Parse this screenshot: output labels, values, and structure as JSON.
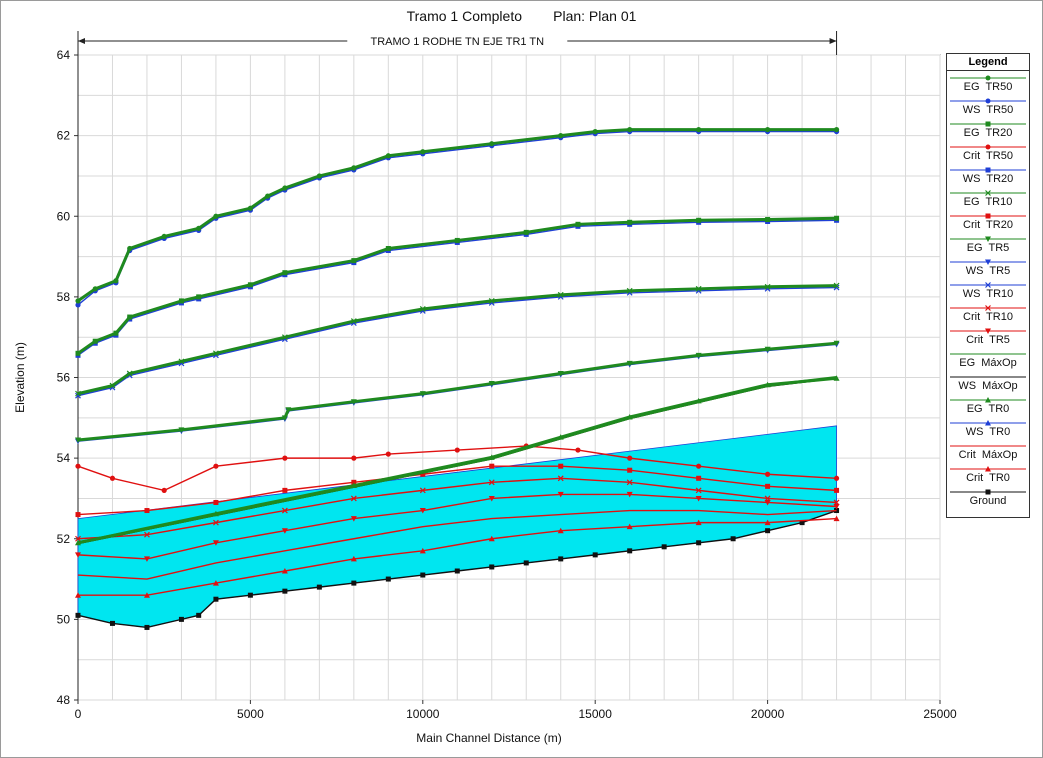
{
  "title": "Tramo 1 Completo        Plan: Plan 01",
  "chart_data": {
    "type": "line",
    "title": "Tramo 1 Completo        Plan: Plan 01",
    "xlabel": "Main Channel Distance (m)",
    "ylabel": "Elevation (m)",
    "xlim": [
      0,
      25000
    ],
    "ylim": [
      48,
      64
    ],
    "xticks": [
      0,
      5000,
      10000,
      15000,
      20000,
      25000
    ],
    "yticks": [
      48,
      50,
      52,
      54,
      56,
      58,
      60,
      62,
      64
    ],
    "grid": true,
    "reach_label": "TRAMO 1 RODHE TN EJE TR1 TN",
    "reach_extent": [
      0,
      22000
    ],
    "legend_title": "Legend",
    "legend_position": "right",
    "series": [
      {
        "name": "EG  TR50",
        "color": "#1f8a1f",
        "marker": "circle",
        "x": [
          0,
          500,
          1100,
          1500,
          2500,
          3500,
          4000,
          5000,
          5500,
          6000,
          7000,
          8000,
          9000,
          10000,
          12000,
          14000,
          15000,
          16000,
          18000,
          20000,
          22000
        ],
        "y": [
          57.9,
          58.2,
          58.4,
          59.2,
          59.5,
          59.7,
          60.0,
          60.2,
          60.5,
          60.7,
          61.0,
          61.2,
          61.5,
          61.6,
          61.8,
          62.0,
          62.1,
          62.15,
          62.15,
          62.15,
          62.15
        ]
      },
      {
        "name": "WS  TR50",
        "color": "#1f3fd6",
        "marker": "circle",
        "x": [
          0,
          500,
          1100,
          1500,
          2500,
          3500,
          4000,
          5000,
          5500,
          6000,
          7000,
          8000,
          9000,
          10000,
          12000,
          14000,
          15000,
          16000,
          18000,
          20000,
          22000
        ],
        "y": [
          57.8,
          58.15,
          58.35,
          59.15,
          59.45,
          59.65,
          59.95,
          60.15,
          60.45,
          60.65,
          60.95,
          61.15,
          61.45,
          61.55,
          61.75,
          61.95,
          62.05,
          62.1,
          62.1,
          62.1,
          62.1
        ]
      },
      {
        "name": "EG  TR20",
        "color": "#1f8a1f",
        "marker": "square",
        "x": [
          0,
          500,
          1100,
          1500,
          3000,
          3500,
          5000,
          6000,
          8000,
          9000,
          11000,
          13000,
          14500,
          16000,
          18000,
          20000,
          22000
        ],
        "y": [
          56.6,
          56.9,
          57.1,
          57.5,
          57.9,
          58.0,
          58.3,
          58.6,
          58.9,
          59.2,
          59.4,
          59.6,
          59.8,
          59.85,
          59.9,
          59.92,
          59.95
        ]
      },
      {
        "name": "Crit  TR50",
        "color": "#e01010",
        "marker": "circle",
        "x": [
          0,
          1000,
          2500,
          4000,
          6000,
          8000,
          9000,
          11000,
          13000,
          14500,
          16000,
          18000,
          20000,
          22000
        ],
        "y": [
          53.8,
          53.5,
          53.2,
          53.8,
          54.0,
          54.0,
          54.1,
          54.2,
          54.3,
          54.2,
          54.0,
          53.8,
          53.6,
          53.5
        ]
      },
      {
        "name": "WS  TR20",
        "color": "#1f3fd6",
        "marker": "square",
        "x": [
          0,
          500,
          1100,
          1500,
          3000,
          3500,
          5000,
          6000,
          8000,
          9000,
          11000,
          13000,
          14500,
          16000,
          18000,
          20000,
          22000
        ],
        "y": [
          56.55,
          56.85,
          57.05,
          57.45,
          57.85,
          57.95,
          58.25,
          58.55,
          58.85,
          59.15,
          59.35,
          59.55,
          59.75,
          59.8,
          59.85,
          59.87,
          59.9
        ]
      },
      {
        "name": "EG  TR10",
        "color": "#1f8a1f",
        "marker": "x",
        "x": [
          0,
          1000,
          1500,
          3000,
          4000,
          6000,
          8000,
          10000,
          12000,
          14000,
          16000,
          18000,
          20000,
          22000
        ],
        "y": [
          55.6,
          55.8,
          56.1,
          56.4,
          56.6,
          57.0,
          57.4,
          57.7,
          57.9,
          58.05,
          58.15,
          58.2,
          58.25,
          58.28
        ]
      },
      {
        "name": "Crit  TR20",
        "color": "#e01010",
        "marker": "square",
        "x": [
          0,
          2000,
          4000,
          6000,
          8000,
          10000,
          12000,
          14000,
          16000,
          18000,
          20000,
          22000
        ],
        "y": [
          52.6,
          52.7,
          52.9,
          53.2,
          53.4,
          53.6,
          53.8,
          53.8,
          53.7,
          53.5,
          53.3,
          53.2
        ]
      },
      {
        "name": "EG  TR5",
        "color": "#1f8a1f",
        "marker": "triangle-down",
        "x": [
          0,
          3000,
          6000,
          6100,
          8000,
          10000,
          12000,
          14000,
          16000,
          18000,
          20000,
          22000
        ],
        "y": [
          54.45,
          54.7,
          55.0,
          55.2,
          55.4,
          55.6,
          55.85,
          56.1,
          56.35,
          56.55,
          56.7,
          56.85
        ]
      },
      {
        "name": "WS  TR5",
        "color": "#1f3fd6",
        "marker": "triangle-down",
        "x": [
          0,
          3000,
          6000,
          6100,
          8000,
          10000,
          12000,
          14000,
          16000,
          18000,
          20000,
          22000
        ],
        "y": [
          54.42,
          54.67,
          54.97,
          55.17,
          55.37,
          55.57,
          55.82,
          56.07,
          56.32,
          56.52,
          56.67,
          56.82
        ]
      },
      {
        "name": "WS  TR10",
        "color": "#1f3fd6",
        "marker": "x",
        "x": [
          0,
          1000,
          1500,
          3000,
          4000,
          6000,
          8000,
          10000,
          12000,
          14000,
          16000,
          18000,
          20000,
          22000
        ],
        "y": [
          55.55,
          55.75,
          56.05,
          56.35,
          56.55,
          56.95,
          57.35,
          57.65,
          57.85,
          58.0,
          58.1,
          58.15,
          58.2,
          58.23
        ]
      },
      {
        "name": "Crit  TR10",
        "color": "#e01010",
        "marker": "x",
        "x": [
          0,
          2000,
          4000,
          6000,
          8000,
          10000,
          12000,
          14000,
          16000,
          18000,
          20000,
          22000
        ],
        "y": [
          52.0,
          52.1,
          52.4,
          52.7,
          53.0,
          53.2,
          53.4,
          53.5,
          53.4,
          53.2,
          53.0,
          52.9
        ]
      },
      {
        "name": "Crit  TR5",
        "color": "#e01010",
        "marker": "triangle-down",
        "x": [
          0,
          2000,
          4000,
          6000,
          8000,
          10000,
          12000,
          14000,
          16000,
          18000,
          20000,
          22000
        ],
        "y": [
          51.6,
          51.5,
          51.9,
          52.2,
          52.5,
          52.7,
          53.0,
          53.1,
          53.1,
          53.0,
          52.9,
          52.8
        ]
      },
      {
        "name": "EG  MáxOp",
        "color": "#1f8a1f",
        "marker": "none",
        "x": [
          0,
          4000,
          8000,
          12000,
          14000,
          16000,
          18000,
          20000,
          22000
        ],
        "y": [
          51.9,
          52.6,
          53.3,
          54.0,
          54.5,
          55.0,
          55.4,
          55.8,
          56.0
        ]
      },
      {
        "name": "WS  MáxOp",
        "color": "#111111",
        "marker": "none",
        "x": [
          0,
          4000,
          8000,
          12000,
          14000,
          16000,
          18000,
          20000,
          22000
        ],
        "y": [
          51.88,
          52.58,
          53.28,
          53.98,
          54.48,
          54.98,
          55.38,
          55.78,
          55.98
        ]
      },
      {
        "name": "EG  TR0",
        "color": "#1f8a1f",
        "marker": "triangle",
        "x": [
          0,
          4000,
          8000,
          12000,
          14000,
          16000,
          18000,
          20000,
          22000
        ],
        "y": [
          51.9,
          52.62,
          53.32,
          54.02,
          54.52,
          55.02,
          55.42,
          55.82,
          55.98
        ]
      },
      {
        "name": "WS  TR0",
        "color": "#1f3fd6",
        "marker": "triangle",
        "x": [
          0,
          22000
        ],
        "y": [
          52.5,
          54.8
        ]
      },
      {
        "name": "Crit  MáxOp",
        "color": "#e01010",
        "marker": "none",
        "x": [
          0,
          2000,
          4000,
          6000,
          8000,
          10000,
          12000,
          14000,
          16000,
          18000,
          20000,
          22000
        ],
        "y": [
          51.1,
          51.0,
          51.4,
          51.7,
          52.0,
          52.3,
          52.5,
          52.6,
          52.7,
          52.7,
          52.6,
          52.7
        ]
      },
      {
        "name": "Crit  TR0",
        "color": "#e01010",
        "marker": "triangle",
        "x": [
          0,
          2000,
          4000,
          6000,
          8000,
          10000,
          12000,
          14000,
          16000,
          18000,
          20000,
          22000
        ],
        "y": [
          50.6,
          50.6,
          50.9,
          51.2,
          51.5,
          51.7,
          52.0,
          52.2,
          52.3,
          52.4,
          52.4,
          52.5
        ]
      },
      {
        "name": "Ground",
        "color": "#111111",
        "marker": "square",
        "x": [
          0,
          1000,
          2000,
          3000,
          3500,
          4000,
          5000,
          6000,
          7000,
          8000,
          9000,
          10000,
          11000,
          12000,
          13000,
          14000,
          15000,
          16000,
          17000,
          18000,
          19000,
          20000,
          21000,
          22000
        ],
        "y": [
          50.1,
          49.9,
          49.8,
          50.0,
          50.1,
          50.5,
          50.6,
          50.7,
          50.8,
          50.9,
          51.0,
          51.1,
          51.2,
          51.3,
          51.4,
          51.5,
          51.6,
          51.7,
          51.8,
          51.9,
          52.0,
          52.2,
          52.4,
          52.7
        ]
      }
    ]
  }
}
